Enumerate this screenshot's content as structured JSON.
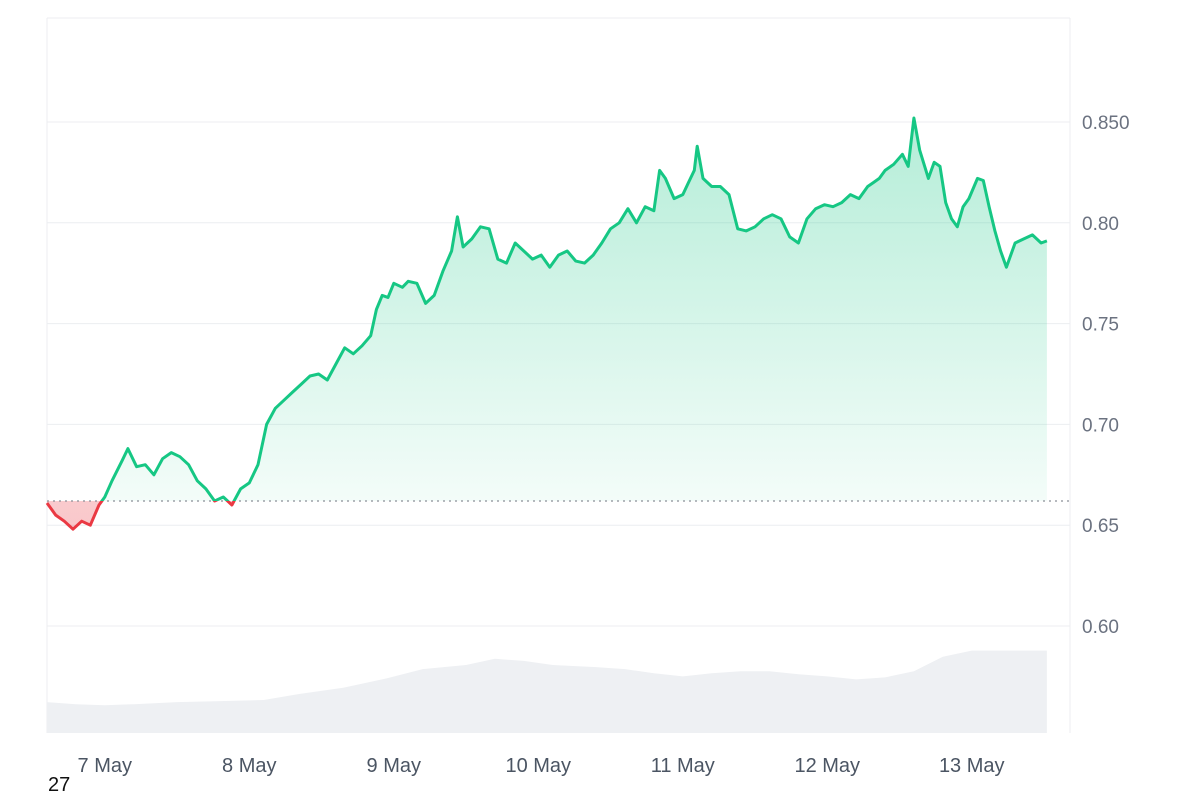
{
  "chart_data": {
    "type": "area",
    "baseline": 0.662,
    "y_ticks": [
      0.6,
      0.65,
      0.7,
      0.75,
      0.8,
      0.85
    ],
    "y_tick_labels": [
      "0.60",
      "0.65",
      "0.70",
      "0.75",
      "0.80",
      "0.850"
    ],
    "ylim": [
      0.55,
      0.9
    ],
    "x_start_day": 6.6,
    "x_end_day": 13.68,
    "x_tick_days": [
      7,
      8,
      9,
      10,
      11,
      12,
      13
    ],
    "x_tick_labels": [
      "7 May",
      "8 May",
      "9 May",
      "10 May",
      "11 May",
      "12 May",
      "13 May"
    ],
    "price_points": [
      [
        6.6,
        0.661
      ],
      [
        6.66,
        0.655
      ],
      [
        6.72,
        0.652
      ],
      [
        6.78,
        0.648
      ],
      [
        6.84,
        0.652
      ],
      [
        6.9,
        0.65
      ],
      [
        6.96,
        0.66
      ],
      [
        7.0,
        0.664
      ],
      [
        7.05,
        0.672
      ],
      [
        7.12,
        0.682
      ],
      [
        7.16,
        0.688
      ],
      [
        7.22,
        0.679
      ],
      [
        7.28,
        0.68
      ],
      [
        7.34,
        0.675
      ],
      [
        7.4,
        0.683
      ],
      [
        7.46,
        0.686
      ],
      [
        7.52,
        0.684
      ],
      [
        7.58,
        0.68
      ],
      [
        7.64,
        0.672
      ],
      [
        7.7,
        0.668
      ],
      [
        7.76,
        0.662
      ],
      [
        7.82,
        0.664
      ],
      [
        7.88,
        0.66
      ],
      [
        7.94,
        0.668
      ],
      [
        8.0,
        0.671
      ],
      [
        8.06,
        0.68
      ],
      [
        8.12,
        0.7
      ],
      [
        8.18,
        0.708
      ],
      [
        8.24,
        0.712
      ],
      [
        8.3,
        0.716
      ],
      [
        8.36,
        0.72
      ],
      [
        8.42,
        0.724
      ],
      [
        8.48,
        0.725
      ],
      [
        8.54,
        0.722
      ],
      [
        8.6,
        0.73
      ],
      [
        8.66,
        0.738
      ],
      [
        8.72,
        0.735
      ],
      [
        8.78,
        0.739
      ],
      [
        8.84,
        0.744
      ],
      [
        8.88,
        0.757
      ],
      [
        8.92,
        0.764
      ],
      [
        8.96,
        0.763
      ],
      [
        9.0,
        0.77
      ],
      [
        9.06,
        0.768
      ],
      [
        9.1,
        0.771
      ],
      [
        9.16,
        0.77
      ],
      [
        9.22,
        0.76
      ],
      [
        9.28,
        0.764
      ],
      [
        9.34,
        0.776
      ],
      [
        9.4,
        0.786
      ],
      [
        9.44,
        0.803
      ],
      [
        9.48,
        0.788
      ],
      [
        9.54,
        0.792
      ],
      [
        9.6,
        0.798
      ],
      [
        9.66,
        0.797
      ],
      [
        9.72,
        0.782
      ],
      [
        9.78,
        0.78
      ],
      [
        9.84,
        0.79
      ],
      [
        9.9,
        0.786
      ],
      [
        9.96,
        0.782
      ],
      [
        10.02,
        0.784
      ],
      [
        10.08,
        0.778
      ],
      [
        10.14,
        0.784
      ],
      [
        10.2,
        0.786
      ],
      [
        10.26,
        0.781
      ],
      [
        10.32,
        0.78
      ],
      [
        10.38,
        0.784
      ],
      [
        10.44,
        0.79
      ],
      [
        10.5,
        0.797
      ],
      [
        10.56,
        0.8
      ],
      [
        10.62,
        0.807
      ],
      [
        10.68,
        0.8
      ],
      [
        10.74,
        0.808
      ],
      [
        10.8,
        0.806
      ],
      [
        10.84,
        0.826
      ],
      [
        10.88,
        0.822
      ],
      [
        10.94,
        0.812
      ],
      [
        11.0,
        0.814
      ],
      [
        11.04,
        0.82
      ],
      [
        11.08,
        0.826
      ],
      [
        11.1,
        0.838
      ],
      [
        11.14,
        0.822
      ],
      [
        11.2,
        0.818
      ],
      [
        11.26,
        0.818
      ],
      [
        11.32,
        0.814
      ],
      [
        11.38,
        0.797
      ],
      [
        11.44,
        0.796
      ],
      [
        11.5,
        0.798
      ],
      [
        11.56,
        0.802
      ],
      [
        11.62,
        0.804
      ],
      [
        11.68,
        0.802
      ],
      [
        11.74,
        0.793
      ],
      [
        11.8,
        0.79
      ],
      [
        11.86,
        0.802
      ],
      [
        11.92,
        0.807
      ],
      [
        11.98,
        0.809
      ],
      [
        12.04,
        0.808
      ],
      [
        12.1,
        0.81
      ],
      [
        12.16,
        0.814
      ],
      [
        12.22,
        0.812
      ],
      [
        12.28,
        0.818
      ],
      [
        12.32,
        0.82
      ],
      [
        12.36,
        0.822
      ],
      [
        12.4,
        0.826
      ],
      [
        12.46,
        0.829
      ],
      [
        12.52,
        0.834
      ],
      [
        12.56,
        0.828
      ],
      [
        12.6,
        0.852
      ],
      [
        12.64,
        0.836
      ],
      [
        12.7,
        0.822
      ],
      [
        12.74,
        0.83
      ],
      [
        12.78,
        0.828
      ],
      [
        12.82,
        0.81
      ],
      [
        12.86,
        0.802
      ],
      [
        12.9,
        0.798
      ],
      [
        12.94,
        0.808
      ],
      [
        12.98,
        0.812
      ],
      [
        13.04,
        0.822
      ],
      [
        13.08,
        0.821
      ],
      [
        13.12,
        0.808
      ],
      [
        13.16,
        0.796
      ],
      [
        13.2,
        0.786
      ],
      [
        13.24,
        0.778
      ],
      [
        13.3,
        0.79
      ],
      [
        13.36,
        0.792
      ],
      [
        13.42,
        0.794
      ],
      [
        13.48,
        0.79
      ],
      [
        13.52,
        0.791
      ]
    ],
    "volume_points": [
      [
        6.6,
        0.3
      ],
      [
        6.8,
        0.28
      ],
      [
        7.0,
        0.27
      ],
      [
        7.2,
        0.28
      ],
      [
        7.5,
        0.3
      ],
      [
        7.8,
        0.31
      ],
      [
        8.1,
        0.32
      ],
      [
        8.35,
        0.38
      ],
      [
        8.65,
        0.44
      ],
      [
        8.95,
        0.53
      ],
      [
        9.2,
        0.62
      ],
      [
        9.5,
        0.66
      ],
      [
        9.7,
        0.72
      ],
      [
        9.9,
        0.7
      ],
      [
        10.1,
        0.66
      ],
      [
        10.4,
        0.64
      ],
      [
        10.6,
        0.62
      ],
      [
        10.8,
        0.58
      ],
      [
        11.0,
        0.55
      ],
      [
        11.2,
        0.58
      ],
      [
        11.4,
        0.6
      ],
      [
        11.6,
        0.6
      ],
      [
        11.8,
        0.57
      ],
      [
        12.0,
        0.55
      ],
      [
        12.2,
        0.52
      ],
      [
        12.4,
        0.54
      ],
      [
        12.6,
        0.6
      ],
      [
        12.8,
        0.74
      ],
      [
        13.0,
        0.8
      ],
      [
        13.2,
        0.8
      ],
      [
        13.4,
        0.8
      ],
      [
        13.52,
        0.8
      ]
    ],
    "up_color": "#16c784",
    "down_color": "#ea3943",
    "volume_color": "#eef0f3",
    "grid": true
  },
  "corner_label": "27"
}
